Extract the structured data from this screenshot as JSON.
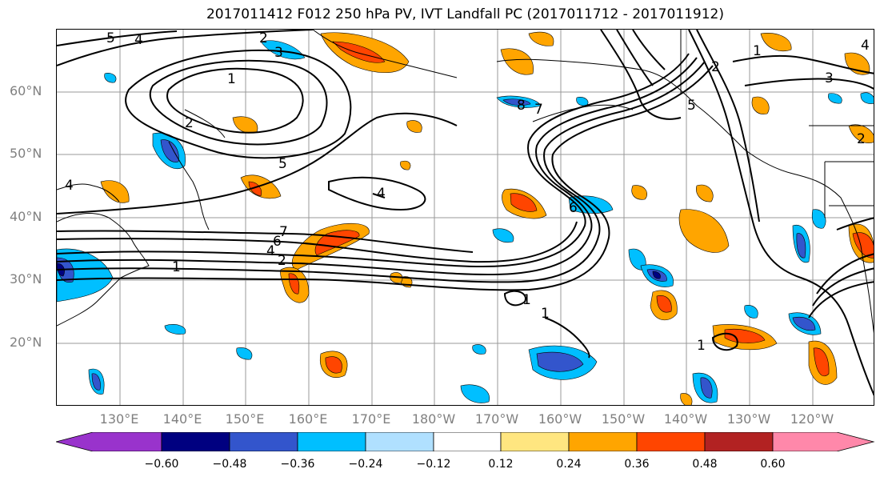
{
  "title": "2017011412 F012 250 hPa PV, IVT Landfall PC (2017011712 - 2017011912)",
  "lat_labels": [
    "60°N",
    "50°N",
    "40°N",
    "30°N",
    "20°N"
  ],
  "lon_labels": [
    "130°E",
    "140°E",
    "150°E",
    "160°E",
    "170°E",
    "180°W",
    "170°W",
    "160°W",
    "150°W",
    "140°W",
    "130°W",
    "120°W"
  ],
  "contour_labels": [
    "5",
    "4",
    "2",
    "3",
    "1",
    "2",
    "5",
    "4",
    "1",
    "7",
    "6",
    "4",
    "2",
    "1",
    "7",
    "6",
    "2",
    "3",
    "5",
    "4",
    "2",
    "1",
    "1",
    "1",
    "8",
    "4"
  ],
  "colorbar": {
    "tick_labels": [
      "−0.60",
      "−0.48",
      "−0.36",
      "−0.24",
      "−0.12",
      "0.12",
      "0.24",
      "0.36",
      "0.48",
      "0.60"
    ],
    "colors": [
      "#9933cc",
      "#000080",
      "#3355cc",
      "#00bfff",
      "#b0e0ff",
      "#ffffff",
      "#ffe680",
      "#ffa500",
      "#ff4500",
      "#b22222",
      "#ff88aa"
    ]
  }
}
